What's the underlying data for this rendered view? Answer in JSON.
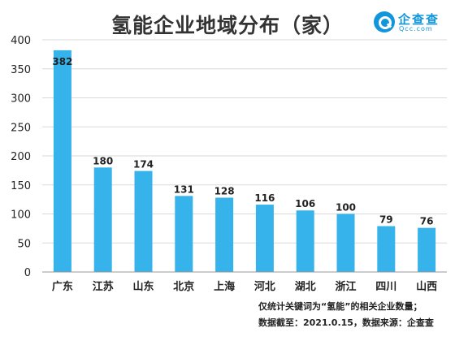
{
  "title": "氢能企业地域分布（家）",
  "logo": {
    "name": "企查查",
    "domain": "Qcc.com"
  },
  "footnotes": [
    "仅统计关键词为“氢能”的相关企业数量；",
    "数据截至：2021.0.15，数据来源：企查查"
  ],
  "colors": {
    "bar": "#35b3ea",
    "axis": "#9a9a9a",
    "grid": "#d9d9d9",
    "text": "#222222"
  },
  "chart_data": {
    "type": "bar",
    "title": "氢能企业地域分布（家）",
    "categories": [
      "广东",
      "江苏",
      "山东",
      "北京",
      "上海",
      "河北",
      "湖北",
      "浙江",
      "四川",
      "山西"
    ],
    "values": [
      382,
      180,
      174,
      131,
      128,
      116,
      106,
      100,
      79,
      76
    ],
    "yticks": [
      0,
      50,
      100,
      150,
      200,
      250,
      300,
      350,
      400
    ],
    "ylim": [
      0,
      400
    ],
    "grid": true,
    "xlabel": "",
    "ylabel": ""
  }
}
